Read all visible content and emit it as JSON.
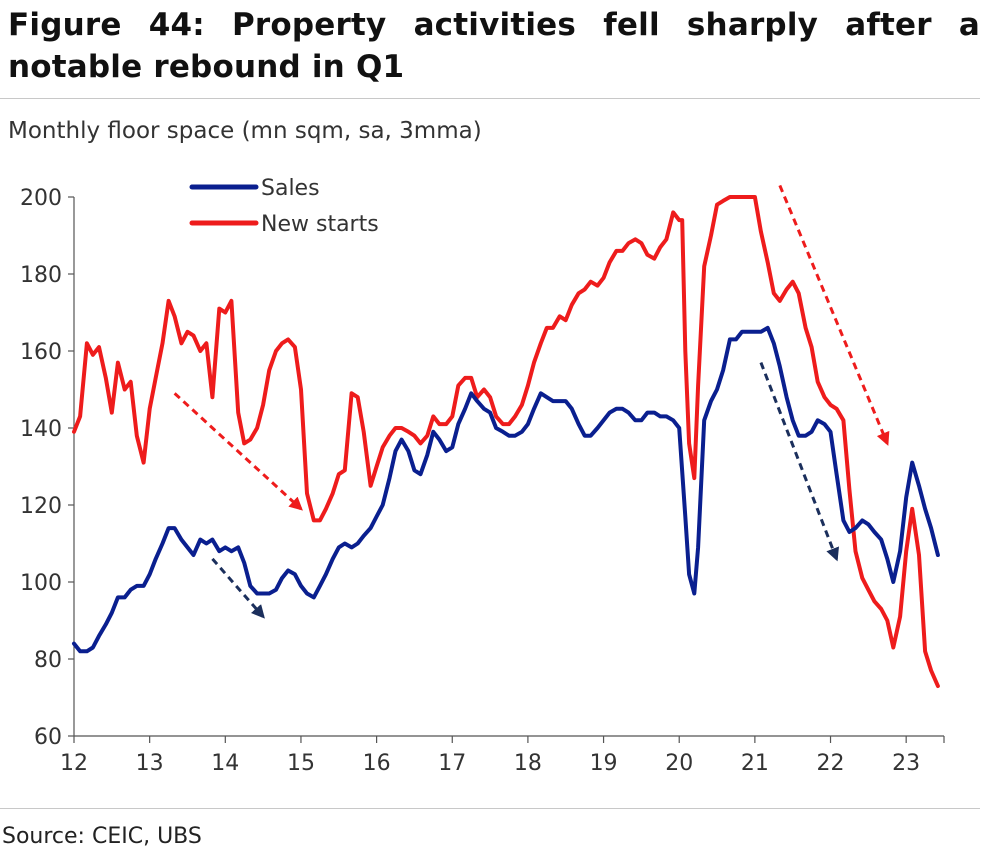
{
  "title": "Figure 44: Property activities fell sharply after a notable rebound in Q1",
  "source": "Source: CEIC, UBS",
  "chart_data": {
    "type": "line",
    "title": "Figure 44: Property activities fell sharply after a notable rebound in Q1",
    "ylabel": "Monthly floor space (mn sqm, sa, 3mma)",
    "xlabel": "",
    "ylim": [
      60,
      200
    ],
    "yticks": [
      60,
      80,
      100,
      120,
      140,
      160,
      180,
      200
    ],
    "xlim": [
      2012,
      2023.5
    ],
    "xticks": [
      2012,
      2013,
      2014,
      2015,
      2016,
      2017,
      2018,
      2019,
      2020,
      2021,
      2022,
      2023
    ],
    "xtick_labels": [
      "12",
      "13",
      "14",
      "15",
      "16",
      "17",
      "18",
      "19",
      "20",
      "21",
      "22",
      "23"
    ],
    "grid": false,
    "legend": "top-left",
    "series": [
      {
        "name": "Sales",
        "color": "#0a1f8f",
        "points": [
          [
            2012.0,
            84
          ],
          [
            2012.08,
            82
          ],
          [
            2012.17,
            82
          ],
          [
            2012.25,
            83
          ],
          [
            2012.33,
            86
          ],
          [
            2012.42,
            89
          ],
          [
            2012.5,
            92
          ],
          [
            2012.58,
            96
          ],
          [
            2012.67,
            96
          ],
          [
            2012.75,
            98
          ],
          [
            2012.83,
            99
          ],
          [
            2012.92,
            99
          ],
          [
            2013.0,
            102
          ],
          [
            2013.08,
            106
          ],
          [
            2013.17,
            110
          ],
          [
            2013.25,
            114
          ],
          [
            2013.33,
            114
          ],
          [
            2013.42,
            111
          ],
          [
            2013.5,
            109
          ],
          [
            2013.58,
            107
          ],
          [
            2013.67,
            111
          ],
          [
            2013.75,
            110
          ],
          [
            2013.83,
            111
          ],
          [
            2013.92,
            108
          ],
          [
            2014.0,
            109
          ],
          [
            2014.08,
            108
          ],
          [
            2014.17,
            109
          ],
          [
            2014.25,
            105
          ],
          [
            2014.33,
            99
          ],
          [
            2014.42,
            97
          ],
          [
            2014.5,
            97
          ],
          [
            2014.58,
            97
          ],
          [
            2014.67,
            98
          ],
          [
            2014.75,
            101
          ],
          [
            2014.83,
            103
          ],
          [
            2014.92,
            102
          ],
          [
            2015.0,
            99
          ],
          [
            2015.08,
            97
          ],
          [
            2015.17,
            96
          ],
          [
            2015.25,
            99
          ],
          [
            2015.33,
            102
          ],
          [
            2015.42,
            106
          ],
          [
            2015.5,
            109
          ],
          [
            2015.58,
            110
          ],
          [
            2015.67,
            109
          ],
          [
            2015.75,
            110
          ],
          [
            2015.83,
            112
          ],
          [
            2015.92,
            114
          ],
          [
            2016.0,
            117
          ],
          [
            2016.08,
            120
          ],
          [
            2016.17,
            127
          ],
          [
            2016.25,
            134
          ],
          [
            2016.33,
            137
          ],
          [
            2016.42,
            134
          ],
          [
            2016.5,
            129
          ],
          [
            2016.58,
            128
          ],
          [
            2016.67,
            133
          ],
          [
            2016.75,
            139
          ],
          [
            2016.83,
            137
          ],
          [
            2016.92,
            134
          ],
          [
            2017.0,
            135
          ],
          [
            2017.08,
            141
          ],
          [
            2017.17,
            145
          ],
          [
            2017.25,
            149
          ],
          [
            2017.33,
            147
          ],
          [
            2017.42,
            145
          ],
          [
            2017.5,
            144
          ],
          [
            2017.58,
            140
          ],
          [
            2017.67,
            139
          ],
          [
            2017.75,
            138
          ],
          [
            2017.83,
            138
          ],
          [
            2017.92,
            139
          ],
          [
            2018.0,
            141
          ],
          [
            2018.08,
            145
          ],
          [
            2018.17,
            149
          ],
          [
            2018.25,
            148
          ],
          [
            2018.33,
            147
          ],
          [
            2018.42,
            147
          ],
          [
            2018.5,
            147
          ],
          [
            2018.58,
            145
          ],
          [
            2018.67,
            141
          ],
          [
            2018.75,
            138
          ],
          [
            2018.83,
            138
          ],
          [
            2018.92,
            140
          ],
          [
            2019.0,
            142
          ],
          [
            2019.08,
            144
          ],
          [
            2019.17,
            145
          ],
          [
            2019.25,
            145
          ],
          [
            2019.33,
            144
          ],
          [
            2019.42,
            142
          ],
          [
            2019.5,
            142
          ],
          [
            2019.58,
            144
          ],
          [
            2019.67,
            144
          ],
          [
            2019.75,
            143
          ],
          [
            2019.83,
            143
          ],
          [
            2019.92,
            142
          ],
          [
            2020.0,
            140
          ],
          [
            2020.08,
            117
          ],
          [
            2020.13,
            102
          ],
          [
            2020.2,
            97
          ],
          [
            2020.25,
            109
          ],
          [
            2020.33,
            142
          ],
          [
            2020.42,
            147
          ],
          [
            2020.5,
            150
          ],
          [
            2020.58,
            155
          ],
          [
            2020.67,
            163
          ],
          [
            2020.75,
            163
          ],
          [
            2020.83,
            165
          ],
          [
            2020.92,
            165
          ],
          [
            2021.0,
            165
          ],
          [
            2021.08,
            165
          ],
          [
            2021.17,
            166
          ],
          [
            2021.25,
            162
          ],
          [
            2021.33,
            156
          ],
          [
            2021.42,
            148
          ],
          [
            2021.5,
            142
          ],
          [
            2021.58,
            138
          ],
          [
            2021.67,
            138
          ],
          [
            2021.75,
            139
          ],
          [
            2021.83,
            142
          ],
          [
            2021.92,
            141
          ],
          [
            2022.0,
            139
          ],
          [
            2022.08,
            128
          ],
          [
            2022.17,
            116
          ],
          [
            2022.25,
            113
          ],
          [
            2022.33,
            114
          ],
          [
            2022.42,
            116
          ],
          [
            2022.5,
            115
          ],
          [
            2022.58,
            113
          ],
          [
            2022.67,
            111
          ],
          [
            2022.75,
            106
          ],
          [
            2022.83,
            100
          ],
          [
            2022.92,
            108
          ],
          [
            2023.0,
            122
          ],
          [
            2023.08,
            131
          ],
          [
            2023.17,
            125
          ],
          [
            2023.25,
            119
          ],
          [
            2023.33,
            114
          ],
          [
            2023.42,
            107
          ]
        ]
      },
      {
        "name": "New starts",
        "color": "#ee1c1c",
        "points": [
          [
            2012.0,
            139
          ],
          [
            2012.08,
            143
          ],
          [
            2012.17,
            162
          ],
          [
            2012.25,
            159
          ],
          [
            2012.33,
            161
          ],
          [
            2012.42,
            153
          ],
          [
            2012.5,
            144
          ],
          [
            2012.58,
            157
          ],
          [
            2012.67,
            150
          ],
          [
            2012.75,
            152
          ],
          [
            2012.83,
            138
          ],
          [
            2012.92,
            131
          ],
          [
            2013.0,
            145
          ],
          [
            2013.08,
            153
          ],
          [
            2013.17,
            162
          ],
          [
            2013.25,
            173
          ],
          [
            2013.33,
            169
          ],
          [
            2013.42,
            162
          ],
          [
            2013.5,
            165
          ],
          [
            2013.58,
            164
          ],
          [
            2013.67,
            160
          ],
          [
            2013.75,
            162
          ],
          [
            2013.83,
            148
          ],
          [
            2013.92,
            171
          ],
          [
            2014.0,
            170
          ],
          [
            2014.08,
            173
          ],
          [
            2014.17,
            144
          ],
          [
            2014.25,
            136
          ],
          [
            2014.33,
            137
          ],
          [
            2014.42,
            140
          ],
          [
            2014.5,
            146
          ],
          [
            2014.58,
            155
          ],
          [
            2014.67,
            160
          ],
          [
            2014.75,
            162
          ],
          [
            2014.83,
            163
          ],
          [
            2014.92,
            161
          ],
          [
            2015.0,
            150
          ],
          [
            2015.08,
            123
          ],
          [
            2015.17,
            116
          ],
          [
            2015.25,
            116
          ],
          [
            2015.33,
            119
          ],
          [
            2015.42,
            123
          ],
          [
            2015.5,
            128
          ],
          [
            2015.58,
            129
          ],
          [
            2015.67,
            149
          ],
          [
            2015.75,
            148
          ],
          [
            2015.83,
            139
          ],
          [
            2015.92,
            125
          ],
          [
            2016.0,
            130
          ],
          [
            2016.08,
            135
          ],
          [
            2016.17,
            138
          ],
          [
            2016.25,
            140
          ],
          [
            2016.33,
            140
          ],
          [
            2016.42,
            139
          ],
          [
            2016.5,
            138
          ],
          [
            2016.58,
            136
          ],
          [
            2016.67,
            138
          ],
          [
            2016.75,
            143
          ],
          [
            2016.83,
            141
          ],
          [
            2016.92,
            141
          ],
          [
            2017.0,
            143
          ],
          [
            2017.08,
            151
          ],
          [
            2017.17,
            153
          ],
          [
            2017.25,
            153
          ],
          [
            2017.33,
            148
          ],
          [
            2017.42,
            150
          ],
          [
            2017.5,
            148
          ],
          [
            2017.58,
            143
          ],
          [
            2017.67,
            141
          ],
          [
            2017.75,
            141
          ],
          [
            2017.83,
            143
          ],
          [
            2017.92,
            146
          ],
          [
            2018.0,
            151
          ],
          [
            2018.08,
            157
          ],
          [
            2018.17,
            162
          ],
          [
            2018.25,
            166
          ],
          [
            2018.33,
            166
          ],
          [
            2018.42,
            169
          ],
          [
            2018.5,
            168
          ],
          [
            2018.58,
            172
          ],
          [
            2018.67,
            175
          ],
          [
            2018.75,
            176
          ],
          [
            2018.83,
            178
          ],
          [
            2018.92,
            177
          ],
          [
            2019.0,
            179
          ],
          [
            2019.08,
            183
          ],
          [
            2019.17,
            186
          ],
          [
            2019.25,
            186
          ],
          [
            2019.33,
            188
          ],
          [
            2019.42,
            189
          ],
          [
            2019.5,
            188
          ],
          [
            2019.58,
            185
          ],
          [
            2019.67,
            184
          ],
          [
            2019.75,
            187
          ],
          [
            2019.83,
            189
          ],
          [
            2019.92,
            196
          ],
          [
            2020.0,
            194
          ],
          [
            2020.04,
            194
          ],
          [
            2020.08,
            160
          ],
          [
            2020.13,
            136
          ],
          [
            2020.2,
            127
          ],
          [
            2020.25,
            151
          ],
          [
            2020.33,
            182
          ],
          [
            2020.42,
            190
          ],
          [
            2020.5,
            198
          ],
          [
            2020.58,
            199
          ],
          [
            2020.67,
            200
          ],
          [
            2020.75,
            200
          ],
          [
            2020.83,
            200
          ],
          [
            2020.92,
            200
          ],
          [
            2021.0,
            200
          ],
          [
            2021.08,
            191
          ],
          [
            2021.17,
            183
          ],
          [
            2021.25,
            175
          ],
          [
            2021.33,
            173
          ],
          [
            2021.42,
            176
          ],
          [
            2021.5,
            178
          ],
          [
            2021.58,
            175
          ],
          [
            2021.67,
            166
          ],
          [
            2021.75,
            161
          ],
          [
            2021.83,
            152
          ],
          [
            2021.92,
            148
          ],
          [
            2022.0,
            146
          ],
          [
            2022.08,
            145
          ],
          [
            2022.17,
            142
          ],
          [
            2022.25,
            124
          ],
          [
            2022.33,
            108
          ],
          [
            2022.42,
            101
          ],
          [
            2022.5,
            98
          ],
          [
            2022.58,
            95
          ],
          [
            2022.67,
            93
          ],
          [
            2022.75,
            90
          ],
          [
            2022.83,
            83
          ],
          [
            2022.92,
            91
          ],
          [
            2023.0,
            108
          ],
          [
            2023.08,
            119
          ],
          [
            2023.17,
            107
          ],
          [
            2023.25,
            82
          ],
          [
            2023.33,
            77
          ],
          [
            2023.42,
            73
          ]
        ]
      }
    ],
    "annotations": [
      {
        "type": "dashed-arrow",
        "color": "#ee1c1c",
        "from": [
          2013.33,
          149
        ],
        "to": [
          2015.0,
          119
        ]
      },
      {
        "type": "dashed-arrow",
        "color": "#0a1f8f",
        "from": [
          2013.83,
          106
        ],
        "to": [
          2014.5,
          91
        ]
      },
      {
        "type": "dashed-arrow",
        "color": "#0a1f8f",
        "from": [
          2021.08,
          157
        ],
        "to": [
          2022.08,
          106
        ]
      },
      {
        "type": "dashed-arrow",
        "color": "#ee1c1c",
        "from": [
          2021.33,
          203
        ],
        "to": [
          2022.75,
          136
        ]
      }
    ]
  }
}
